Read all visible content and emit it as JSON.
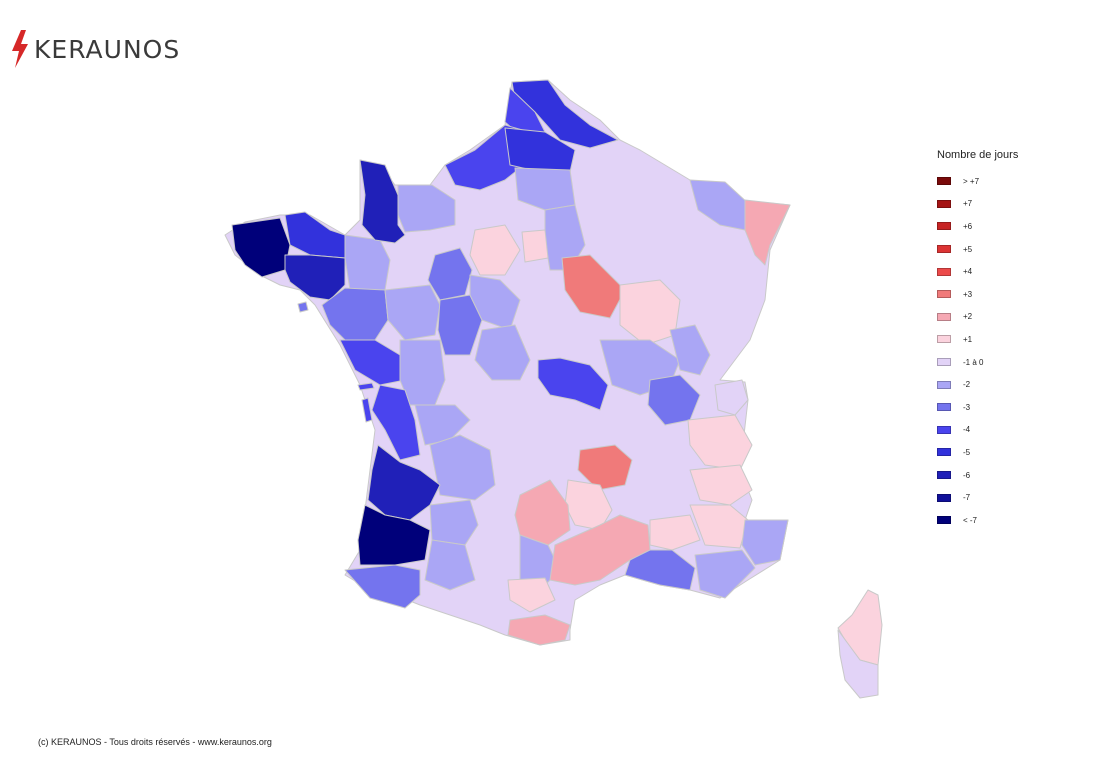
{
  "brand": {
    "name": "KERAUNOS",
    "accent": "#d62828",
    "icon": "lightning-bolt-icon"
  },
  "legend": {
    "title": "Nombre de jours",
    "items": [
      {
        "label": "> +7",
        "color": "#7a0a0a"
      },
      {
        "label": "+7",
        "color": "#a51414"
      },
      {
        "label": "+6",
        "color": "#c72424"
      },
      {
        "label": "+5",
        "color": "#dc3434"
      },
      {
        "label": "+4",
        "color": "#ec4a4a"
      },
      {
        "label": "+3",
        "color": "#f07a7a"
      },
      {
        "label": "+2",
        "color": "#f5a8b3"
      },
      {
        "label": "+1",
        "color": "#fbd3de"
      },
      {
        "label": "-1 à 0",
        "color": "#e2d3f7"
      },
      {
        "label": "-2",
        "color": "#aaa6f5"
      },
      {
        "label": "-3",
        "color": "#7474ee"
      },
      {
        "label": "-4",
        "color": "#4a44ee"
      },
      {
        "label": "-5",
        "color": "#3232dc"
      },
      {
        "label": "-6",
        "color": "#2020b8"
      },
      {
        "label": "-7",
        "color": "#10109a"
      },
      {
        "label": "< -7",
        "color": "#00007a"
      }
    ]
  },
  "footer": "(c) KERAUNOS - Tous droits réservés - www.keraunos.org"
}
